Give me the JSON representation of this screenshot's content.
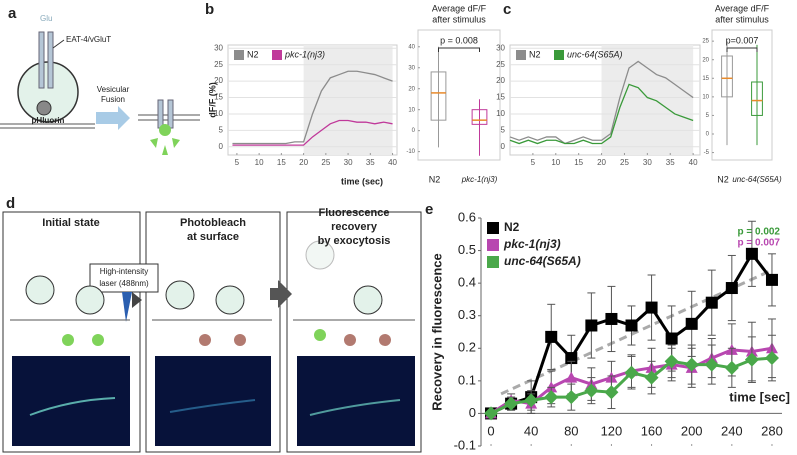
{
  "letters": {
    "a": "a",
    "b": "b",
    "c": "c",
    "d": "d",
    "e": "e"
  },
  "diagram_a": {
    "glu": "Glu",
    "transporter": "EAT-4/vGluT",
    "sensor": "pHluorin",
    "step": [
      "Vesicular",
      "Fusion"
    ]
  },
  "diagram_d": {
    "stages": [
      [
        "Initial state"
      ],
      [
        "Photobleach",
        "at surface"
      ],
      [
        "Fluorescence",
        "recovery",
        "by exocytosis"
      ]
    ],
    "laser": [
      "High-intensity",
      "laser (488nm)"
    ]
  },
  "chart_data": [
    {
      "type": "line",
      "xlabel": "time (sec)",
      "ylabel": "dF/F (%)",
      "x": [
        4,
        6,
        8,
        10,
        12,
        14,
        16,
        18,
        20,
        22,
        24,
        26,
        28,
        30,
        32,
        34,
        36,
        38,
        40
      ],
      "series": [
        {
          "name": "N2",
          "color": "#8c8c8c",
          "values": [
            1,
            1,
            1,
            1,
            1,
            1,
            1,
            1.5,
            1.5,
            10,
            17,
            21,
            22,
            23,
            23,
            22.5,
            22,
            21,
            20
          ]
        },
        {
          "name": "pkc-1(nj3)",
          "color": "#c0399a",
          "values": [
            0.5,
            0.5,
            0.5,
            0.5,
            0.5,
            0.5,
            0.5,
            0.5,
            0.5,
            3,
            5,
            7,
            8,
            8,
            7.5,
            7.5,
            7,
            7.5,
            7
          ]
        }
      ],
      "xlim": [
        3,
        41
      ],
      "ylim": [
        -2.5,
        31
      ],
      "xticks": [
        5,
        10,
        15,
        20,
        25,
        30,
        35,
        40
      ],
      "yticks": [
        0,
        5,
        10,
        15,
        20,
        25,
        30
      ],
      "grid": true,
      "shaded_x": [
        20,
        40
      ]
    },
    {
      "type": "box",
      "title": [
        "Average dF/F",
        "after stimulus"
      ],
      "categories": [
        "N2",
        "pkc-1(nj3)"
      ],
      "colors": [
        "#999999",
        "#c0399a"
      ],
      "stats": {
        "min": [
          -8,
          -12
        ],
        "q1": [
          5,
          3
        ],
        "median": [
          18,
          5
        ],
        "q3": [
          28,
          10
        ],
        "max": [
          40,
          15
        ]
      },
      "p_value": "p = 0.008",
      "ylim": [
        -14,
        48
      ],
      "yticks": [
        -10,
        0,
        10,
        20,
        30,
        40
      ]
    },
    {
      "type": "line",
      "x": [
        0,
        2,
        4,
        6,
        8,
        10,
        12,
        14,
        16,
        18,
        20,
        22,
        24,
        26,
        28,
        30,
        32,
        34,
        36,
        38,
        40
      ],
      "series": [
        {
          "name": "N2",
          "color": "#8c8c8c",
          "values": [
            3,
            2,
            3,
            2,
            3,
            3,
            1,
            2,
            3,
            2,
            2,
            4,
            15,
            24,
            26,
            24,
            22,
            21,
            19,
            17,
            15
          ]
        },
        {
          "name": "unc-64(S65A)",
          "color": "#3a9a3a",
          "values": [
            2,
            1,
            2,
            1,
            2,
            2,
            1,
            1,
            2,
            1,
            1,
            3,
            12,
            19,
            18,
            15,
            14,
            12,
            10,
            9,
            8
          ]
        }
      ],
      "xlim": [
        0,
        41.5
      ],
      "ylim": [
        -2.5,
        31
      ],
      "xticks": [
        5,
        10,
        15,
        20,
        25,
        30,
        35,
        40
      ],
      "yticks": [
        0,
        5,
        10,
        15,
        20,
        25,
        30
      ],
      "grid": true,
      "shaded_x": [
        20,
        40
      ]
    },
    {
      "type": "box",
      "title": [
        "Average dF/F",
        "after stimulus"
      ],
      "categories": [
        "N2",
        "unc-64(S65A)"
      ],
      "colors": [
        "#999999",
        "#3a9a3a"
      ],
      "stats": {
        "min": [
          -3,
          -3
        ],
        "q1": [
          10,
          5
        ],
        "median": [
          15,
          9
        ],
        "q3": [
          21,
          14
        ],
        "max": [
          25,
          24
        ]
      },
      "p_value": "p=0.007",
      "ylim": [
        -7,
        28
      ],
      "yticks": [
        -5,
        0,
        5,
        10,
        15,
        20,
        25
      ]
    },
    {
      "type": "line",
      "xlabel": "time [sec]",
      "ylabel": "Recovery in fluorescence",
      "x": [
        0,
        20,
        40,
        60,
        80,
        100,
        120,
        140,
        160,
        180,
        200,
        220,
        240,
        260,
        280
      ],
      "series": [
        {
          "name": "N2",
          "color": "#000000",
          "marker": "square",
          "values": [
            0,
            0.03,
            0.05,
            0.235,
            0.17,
            0.27,
            0.29,
            0.27,
            0.325,
            0.23,
            0.275,
            0.34,
            0.385,
            0.49,
            0.41
          ],
          "errors": [
            0,
            0.02,
            0.05,
            0.1,
            0.07,
            0.1,
            0.1,
            0.06,
            0.1,
            0.1,
            0.1,
            0.1,
            0.1,
            0.1,
            0.08
          ]
        },
        {
          "name": "pkc-1(nj3)",
          "color": "#b847b0",
          "marker": "triangle",
          "values": [
            0,
            0.04,
            0.03,
            0.08,
            0.11,
            0.09,
            0.11,
            0.13,
            0.14,
            0.15,
            0.14,
            0.17,
            0.195,
            0.19,
            0.2
          ],
          "errors": [
            0,
            0.02,
            0.03,
            0.05,
            0.05,
            0.05,
            0.05,
            0.05,
            0.06,
            0.05,
            0.06,
            0.06,
            0.08,
            0.09,
            0.09
          ]
        },
        {
          "name": "unc-64(S65A)",
          "color": "#4aa84a",
          "marker": "diamond",
          "values": [
            0,
            0.03,
            0.04,
            0.05,
            0.05,
            0.07,
            0.065,
            0.125,
            0.11,
            0.16,
            0.15,
            0.15,
            0.14,
            0.165,
            0.17
          ],
          "errors": [
            0,
            0.02,
            0.03,
            0.03,
            0.04,
            0.04,
            0.05,
            0.05,
            0.05,
            0.05,
            0.06,
            0.06,
            0.06,
            0.07,
            0.07
          ]
        }
      ],
      "trend": {
        "x": [
          10,
          280
        ],
        "values": [
          0.06,
          0.44
        ],
        "color": "#aaaaaa"
      },
      "annotations": [
        {
          "text": "p = 0.002",
          "color": "#3a9a3a"
        },
        {
          "text": "p = 0.007",
          "color": "#b847b0"
        }
      ],
      "xlim": [
        -10,
        290
      ],
      "ylim": [
        -0.1,
        0.6
      ],
      "xticks": [
        0,
        40,
        80,
        120,
        160,
        200,
        240,
        280
      ],
      "yticks": [
        -0.1,
        0,
        0.1,
        0.2,
        0.3,
        0.4,
        0.5,
        0.6
      ],
      "grid": false
    }
  ]
}
